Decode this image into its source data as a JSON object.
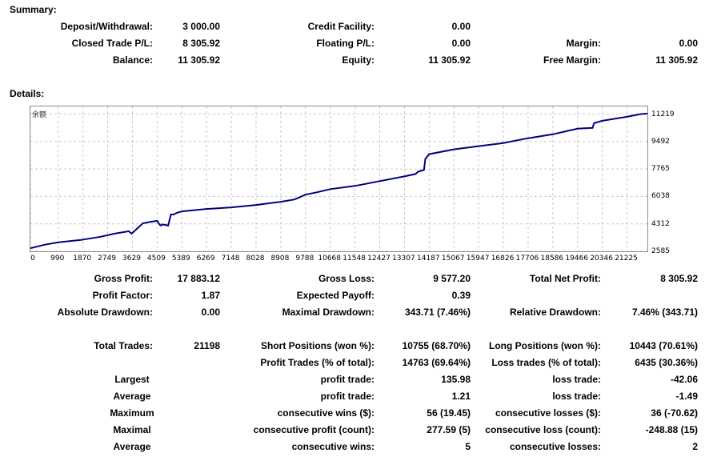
{
  "summary_title": "Summary:",
  "summary": {
    "deposit_label": "Deposit/Withdrawal:",
    "deposit_value": "3 000.00",
    "credit_label": "Credit Facility:",
    "credit_value": "0.00",
    "closed_label": "Closed Trade P/L:",
    "closed_value": "8 305.92",
    "floating_label": "Floating P/L:",
    "floating_value": "0.00",
    "margin_label": "Margin:",
    "margin_value": "0.00",
    "balance_label": "Balance:",
    "balance_value": "11 305.92",
    "equity_label": "Equity:",
    "equity_value": "11 305.92",
    "free_margin_label": "Free Margin:",
    "free_margin_value": "11 305.92"
  },
  "details_title": "Details:",
  "chart_data": {
    "type": "line",
    "title": "余额",
    "x_ticks": [
      "0",
      "990",
      "1870",
      "2749",
      "3629",
      "4509",
      "5389",
      "6269",
      "7148",
      "8028",
      "8908",
      "9788",
      "10668",
      "11548",
      "12427",
      "13307",
      "14187",
      "15067",
      "15947",
      "16826",
      "17706",
      "18586",
      "19466",
      "20346",
      "21225"
    ],
    "y_ticks": [
      "11219",
      "9492",
      "7765",
      "6038",
      "4312",
      "2585"
    ],
    "xlim": [
      0,
      21950
    ],
    "ylim": [
      2585,
      11700
    ],
    "grid": true,
    "series": [
      {
        "color": "#000080",
        "x": [
          0,
          500,
          1000,
          1800,
          2500,
          3000,
          3500,
          3600,
          4000,
          4300,
          4509,
          4600,
          4650,
          4700,
          4900,
          5000,
          5100,
          5200,
          5389,
          6269,
          7148,
          8028,
          8908,
          9400,
          9788,
          10200,
          10668,
          11548,
          12427,
          13307,
          13700,
          13800,
          14000,
          14050,
          14187,
          15067,
          15947,
          16826,
          17706,
          18586,
          19466,
          20000,
          20050,
          20346,
          21225,
          21700,
          21950
        ],
        "y": [
          2780,
          3000,
          3150,
          3300,
          3500,
          3700,
          3850,
          3700,
          4350,
          4450,
          4500,
          4250,
          4200,
          4280,
          4200,
          4900,
          4900,
          5000,
          5100,
          5250,
          5350,
          5500,
          5700,
          5850,
          6150,
          6300,
          6500,
          6700,
          7000,
          7300,
          7450,
          7600,
          7700,
          8400,
          8700,
          9000,
          9200,
          9400,
          9700,
          9950,
          10300,
          10350,
          10650,
          10800,
          11050,
          11219,
          11250
        ]
      }
    ]
  },
  "stats": {
    "gross_profit_label": "Gross Profit:",
    "gross_profit_value": "17 883.12",
    "gross_loss_label": "Gross Loss:",
    "gross_loss_value": "9 577.20",
    "total_net_label": "Total Net Profit:",
    "total_net_value": "8 305.92",
    "profit_factor_label": "Profit Factor:",
    "profit_factor_value": "1.87",
    "expected_payoff_label": "Expected Payoff:",
    "expected_payoff_value": "0.39",
    "abs_dd_label": "Absolute Drawdown:",
    "abs_dd_value": "0.00",
    "max_dd_label": "Maximal Drawdown:",
    "max_dd_value": "343.71 (7.46%)",
    "rel_dd_label": "Relative Drawdown:",
    "rel_dd_value": "7.46% (343.71)",
    "total_trades_label": "Total Trades:",
    "total_trades_value": "21198",
    "short_label": "Short Positions (won %):",
    "short_value": "10755 (68.70%)",
    "long_label": "Long Positions (won %):",
    "long_value": "10443 (70.61%)",
    "profit_trades_label": "Profit Trades (% of total):",
    "profit_trades_value": "14763 (69.64%)",
    "loss_trades_label": "Loss trades (% of total):",
    "loss_trades_value": "6435 (30.36%)",
    "rows": [
      {
        "h": "Largest",
        "pl": "profit trade:",
        "pv": "135.98",
        "ll": "loss trade:",
        "lv": "-42.06"
      },
      {
        "h": "Average",
        "pl": "profit trade:",
        "pv": "1.21",
        "ll": "loss trade:",
        "lv": "-1.49"
      },
      {
        "h": "Maximum",
        "pl": "consecutive wins ($):",
        "pv": "56 (19.45)",
        "ll": "consecutive losses ($):",
        "lv": "36 (-70.62)"
      },
      {
        "h": "Maximal",
        "pl": "consecutive profit (count):",
        "pv": "277.59 (5)",
        "ll": "consecutive loss (count):",
        "lv": "-248.88 (15)"
      },
      {
        "h": "Average",
        "pl": "consecutive wins:",
        "pv": "5",
        "ll": "consecutive losses:",
        "lv": "2"
      }
    ]
  }
}
